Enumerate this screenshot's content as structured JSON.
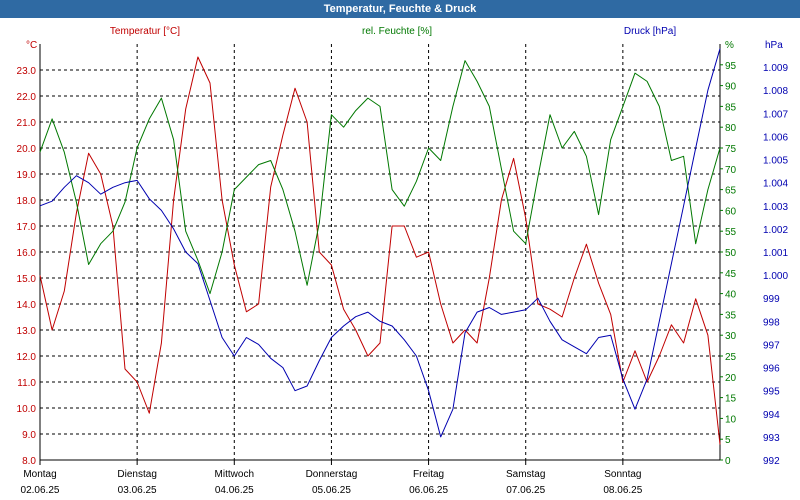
{
  "window": {
    "title": "Temperatur, Feuchte & Druck"
  },
  "colors": {
    "temperature": "#c00000",
    "humidity": "#007800",
    "pressure": "#0000b0",
    "title_bar": "#2f6aa3",
    "grid": "#000000"
  },
  "chart_data": {
    "type": "line",
    "title": "Temperatur, Feuchte & Druck",
    "grid": true,
    "x_axis": {
      "start": "2025-06-02 00:00",
      "end": "2025-06-09 00:00",
      "labels": [
        {
          "day": "Montag",
          "date": "02.06.25"
        },
        {
          "day": "Dienstag",
          "date": "03.06.25"
        },
        {
          "day": "Mittwoch",
          "date": "04.06.25"
        },
        {
          "day": "Donnerstag",
          "date": "05.06.25"
        },
        {
          "day": "Freitag",
          "date": "06.06.25"
        },
        {
          "day": "Samstag",
          "date": "07.06.25"
        },
        {
          "day": "Sonntag",
          "date": "08.06.25"
        }
      ]
    },
    "y_axes": {
      "temperature": {
        "label": "Temperatur [°C]",
        "unit": "°C",
        "ylim": [
          8.0,
          24.0
        ],
        "ticks": [
          "8.0",
          "9.0",
          "10.0",
          "11.0",
          "12.0",
          "13.0",
          "14.0",
          "15.0",
          "16.0",
          "17.0",
          "18.0",
          "19.0",
          "20.0",
          "21.0",
          "22.0",
          "23.0"
        ]
      },
      "humidity": {
        "label": "rel. Feuchte [%]",
        "unit": "%",
        "ylim": [
          0,
          100
        ],
        "ticks": [
          "0",
          "5",
          "10",
          "15",
          "20",
          "25",
          "30",
          "35",
          "40",
          "45",
          "50",
          "55",
          "60",
          "65",
          "70",
          "75",
          "80",
          "85",
          "90",
          "95"
        ]
      },
      "pressure": {
        "label": "Druck [hPa]",
        "unit": "hPa",
        "ylim": [
          992,
          1010
        ],
        "ticks": [
          "992",
          "993",
          "994",
          "995",
          "996",
          "997",
          "998",
          "999",
          "1.000",
          "1.001",
          "1.002",
          "1.003",
          "1.004",
          "1.005",
          "1.006",
          "1.007",
          "1.008",
          "1.009"
        ]
      }
    },
    "series": [
      {
        "name": "Temperatur [°C]",
        "axis": "temperature",
        "color": "#c00000",
        "points": [
          [
            "2025-06-02 00:00",
            15.1
          ],
          [
            "2025-06-02 03:00",
            13.0
          ],
          [
            "2025-06-02 06:00",
            14.5
          ],
          [
            "2025-06-02 09:00",
            17.5
          ],
          [
            "2025-06-02 12:00",
            19.8
          ],
          [
            "2025-06-02 15:00",
            19.0
          ],
          [
            "2025-06-02 18:00",
            17.0
          ],
          [
            "2025-06-02 21:00",
            11.5
          ],
          [
            "2025-06-03 00:00",
            11.0
          ],
          [
            "2025-06-03 03:00",
            9.8
          ],
          [
            "2025-06-03 06:00",
            12.5
          ],
          [
            "2025-06-03 09:00",
            18.0
          ],
          [
            "2025-06-03 12:00",
            21.5
          ],
          [
            "2025-06-03 15:00",
            23.5
          ],
          [
            "2025-06-03 18:00",
            22.5
          ],
          [
            "2025-06-03 21:00",
            18.0
          ],
          [
            "2025-06-04 00:00",
            15.5
          ],
          [
            "2025-06-04 03:00",
            13.7
          ],
          [
            "2025-06-04 06:00",
            14.0
          ],
          [
            "2025-06-04 09:00",
            18.5
          ],
          [
            "2025-06-04 12:00",
            20.5
          ],
          [
            "2025-06-04 15:00",
            22.3
          ],
          [
            "2025-06-04 18:00",
            21.0
          ],
          [
            "2025-06-04 21:00",
            16.0
          ],
          [
            "2025-06-05 00:00",
            15.5
          ],
          [
            "2025-06-05 03:00",
            13.8
          ],
          [
            "2025-06-05 06:00",
            13.0
          ],
          [
            "2025-06-05 09:00",
            12.0
          ],
          [
            "2025-06-05 12:00",
            12.5
          ],
          [
            "2025-06-05 15:00",
            17.0
          ],
          [
            "2025-06-05 18:00",
            17.0
          ],
          [
            "2025-06-05 21:00",
            15.8
          ],
          [
            "2025-06-06 00:00",
            16.0
          ],
          [
            "2025-06-06 03:00",
            14.0
          ],
          [
            "2025-06-06 06:00",
            12.5
          ],
          [
            "2025-06-06 09:00",
            13.0
          ],
          [
            "2025-06-06 12:00",
            12.5
          ],
          [
            "2025-06-06 15:00",
            15.0
          ],
          [
            "2025-06-06 18:00",
            18.0
          ],
          [
            "2025-06-06 21:00",
            19.6
          ],
          [
            "2025-06-07 00:00",
            17.3
          ],
          [
            "2025-06-07 03:00",
            14.0
          ],
          [
            "2025-06-07 06:00",
            13.8
          ],
          [
            "2025-06-07 09:00",
            13.5
          ],
          [
            "2025-06-07 12:00",
            15.0
          ],
          [
            "2025-06-07 15:00",
            16.3
          ],
          [
            "2025-06-07 18:00",
            14.8
          ],
          [
            "2025-06-07 21:00",
            13.6
          ],
          [
            "2025-06-08 00:00",
            11.0
          ],
          [
            "2025-06-08 03:00",
            12.2
          ],
          [
            "2025-06-08 06:00",
            11.0
          ],
          [
            "2025-06-08 09:00",
            12.0
          ],
          [
            "2025-06-08 12:00",
            13.2
          ],
          [
            "2025-06-08 15:00",
            12.5
          ],
          [
            "2025-06-08 18:00",
            14.2
          ],
          [
            "2025-06-08 21:00",
            12.8
          ],
          [
            "2025-06-09 00:00",
            8.6
          ]
        ]
      },
      {
        "name": "rel. Feuchte [%]",
        "axis": "humidity",
        "color": "#007800",
        "points": [
          [
            "2025-06-02 00:00",
            74
          ],
          [
            "2025-06-02 03:00",
            82
          ],
          [
            "2025-06-02 06:00",
            74
          ],
          [
            "2025-06-02 09:00",
            62
          ],
          [
            "2025-06-02 12:00",
            47
          ],
          [
            "2025-06-02 15:00",
            52
          ],
          [
            "2025-06-02 18:00",
            55
          ],
          [
            "2025-06-02 21:00",
            62
          ],
          [
            "2025-06-03 00:00",
            75
          ],
          [
            "2025-06-03 03:00",
            82
          ],
          [
            "2025-06-03 06:00",
            87
          ],
          [
            "2025-06-03 09:00",
            77
          ],
          [
            "2025-06-03 12:00",
            55
          ],
          [
            "2025-06-03 15:00",
            48
          ],
          [
            "2025-06-03 18:00",
            40
          ],
          [
            "2025-06-03 21:00",
            50
          ],
          [
            "2025-06-04 00:00",
            65
          ],
          [
            "2025-06-04 03:00",
            68
          ],
          [
            "2025-06-04 06:00",
            71
          ],
          [
            "2025-06-04 09:00",
            72
          ],
          [
            "2025-06-04 12:00",
            65
          ],
          [
            "2025-06-04 15:00",
            55
          ],
          [
            "2025-06-04 18:00",
            42
          ],
          [
            "2025-06-04 21:00",
            57
          ],
          [
            "2025-06-05 00:00",
            83
          ],
          [
            "2025-06-05 03:00",
            80
          ],
          [
            "2025-06-05 06:00",
            84
          ],
          [
            "2025-06-05 09:00",
            87
          ],
          [
            "2025-06-05 12:00",
            85
          ],
          [
            "2025-06-05 15:00",
            65
          ],
          [
            "2025-06-05 18:00",
            61
          ],
          [
            "2025-06-05 21:00",
            67
          ],
          [
            "2025-06-06 00:00",
            75
          ],
          [
            "2025-06-06 03:00",
            72
          ],
          [
            "2025-06-06 06:00",
            85
          ],
          [
            "2025-06-06 09:00",
            96
          ],
          [
            "2025-06-06 12:00",
            91
          ],
          [
            "2025-06-06 15:00",
            85
          ],
          [
            "2025-06-06 18:00",
            70
          ],
          [
            "2025-06-06 21:00",
            55
          ],
          [
            "2025-06-07 00:00",
            52
          ],
          [
            "2025-06-07 03:00",
            68
          ],
          [
            "2025-06-07 06:00",
            83
          ],
          [
            "2025-06-07 09:00",
            75
          ],
          [
            "2025-06-07 12:00",
            79
          ],
          [
            "2025-06-07 15:00",
            73
          ],
          [
            "2025-06-07 18:00",
            59
          ],
          [
            "2025-06-07 21:00",
            77
          ],
          [
            "2025-06-08 00:00",
            85
          ],
          [
            "2025-06-08 03:00",
            93
          ],
          [
            "2025-06-08 06:00",
            91
          ],
          [
            "2025-06-08 09:00",
            85
          ],
          [
            "2025-06-08 12:00",
            72
          ],
          [
            "2025-06-08 15:00",
            73
          ],
          [
            "2025-06-08 18:00",
            52
          ],
          [
            "2025-06-08 21:00",
            65
          ],
          [
            "2025-06-09 00:00",
            75
          ]
        ]
      },
      {
        "name": "Druck [hPa]",
        "axis": "pressure",
        "color": "#0000b0",
        "points": [
          [
            "2025-06-02 00:00",
            1003.0
          ],
          [
            "2025-06-02 03:00",
            1003.2
          ],
          [
            "2025-06-02 06:00",
            1003.8
          ],
          [
            "2025-06-02 09:00",
            1004.3
          ],
          [
            "2025-06-02 12:00",
            1004.0
          ],
          [
            "2025-06-02 15:00",
            1003.5
          ],
          [
            "2025-06-02 18:00",
            1003.8
          ],
          [
            "2025-06-02 21:00",
            1004.0
          ],
          [
            "2025-06-03 00:00",
            1004.1
          ],
          [
            "2025-06-03 03:00",
            1003.3
          ],
          [
            "2025-06-03 06:00",
            1002.8
          ],
          [
            "2025-06-03 09:00",
            1002.0
          ],
          [
            "2025-06-03 12:00",
            1001.0
          ],
          [
            "2025-06-03 15:00",
            1000.5
          ],
          [
            "2025-06-03 18:00",
            998.9
          ],
          [
            "2025-06-03 21:00",
            997.3
          ],
          [
            "2025-06-04 00:00",
            996.5
          ],
          [
            "2025-06-04 03:00",
            997.3
          ],
          [
            "2025-06-04 06:00",
            997.0
          ],
          [
            "2025-06-04 09:00",
            996.4
          ],
          [
            "2025-06-04 12:00",
            996.0
          ],
          [
            "2025-06-04 15:00",
            995.0
          ],
          [
            "2025-06-04 18:00",
            995.2
          ],
          [
            "2025-06-04 21:00",
            996.3
          ],
          [
            "2025-06-05 00:00",
            997.3
          ],
          [
            "2025-06-05 03:00",
            997.8
          ],
          [
            "2025-06-05 06:00",
            998.2
          ],
          [
            "2025-06-05 09:00",
            998.4
          ],
          [
            "2025-06-05 12:00",
            998.0
          ],
          [
            "2025-06-05 15:00",
            997.8
          ],
          [
            "2025-06-05 18:00",
            997.2
          ],
          [
            "2025-06-05 21:00",
            996.5
          ],
          [
            "2025-06-06 00:00",
            995.0
          ],
          [
            "2025-06-06 03:00",
            993.0
          ],
          [
            "2025-06-06 06:00",
            994.2
          ],
          [
            "2025-06-06 09:00",
            997.5
          ],
          [
            "2025-06-06 12:00",
            998.4
          ],
          [
            "2025-06-06 15:00",
            998.6
          ],
          [
            "2025-06-06 18:00",
            998.3
          ],
          [
            "2025-06-06 21:00",
            998.4
          ],
          [
            "2025-06-07 00:00",
            998.5
          ],
          [
            "2025-06-07 03:00",
            999.0
          ],
          [
            "2025-06-07 06:00",
            998.0
          ],
          [
            "2025-06-07 09:00",
            997.2
          ],
          [
            "2025-06-07 12:00",
            996.9
          ],
          [
            "2025-06-07 15:00",
            996.6
          ],
          [
            "2025-06-07 18:00",
            997.3
          ],
          [
            "2025-06-07 21:00",
            997.4
          ],
          [
            "2025-06-08 00:00",
            995.5
          ],
          [
            "2025-06-08 03:00",
            994.2
          ],
          [
            "2025-06-08 06:00",
            995.5
          ],
          [
            "2025-06-08 09:00",
            998.0
          ],
          [
            "2025-06-08 12:00",
            1000.5
          ],
          [
            "2025-06-08 15:00",
            1003.0
          ],
          [
            "2025-06-08 18:00",
            1005.5
          ],
          [
            "2025-06-08 21:00",
            1008.0
          ],
          [
            "2025-06-09 00:00",
            1009.8
          ]
        ]
      }
    ]
  }
}
